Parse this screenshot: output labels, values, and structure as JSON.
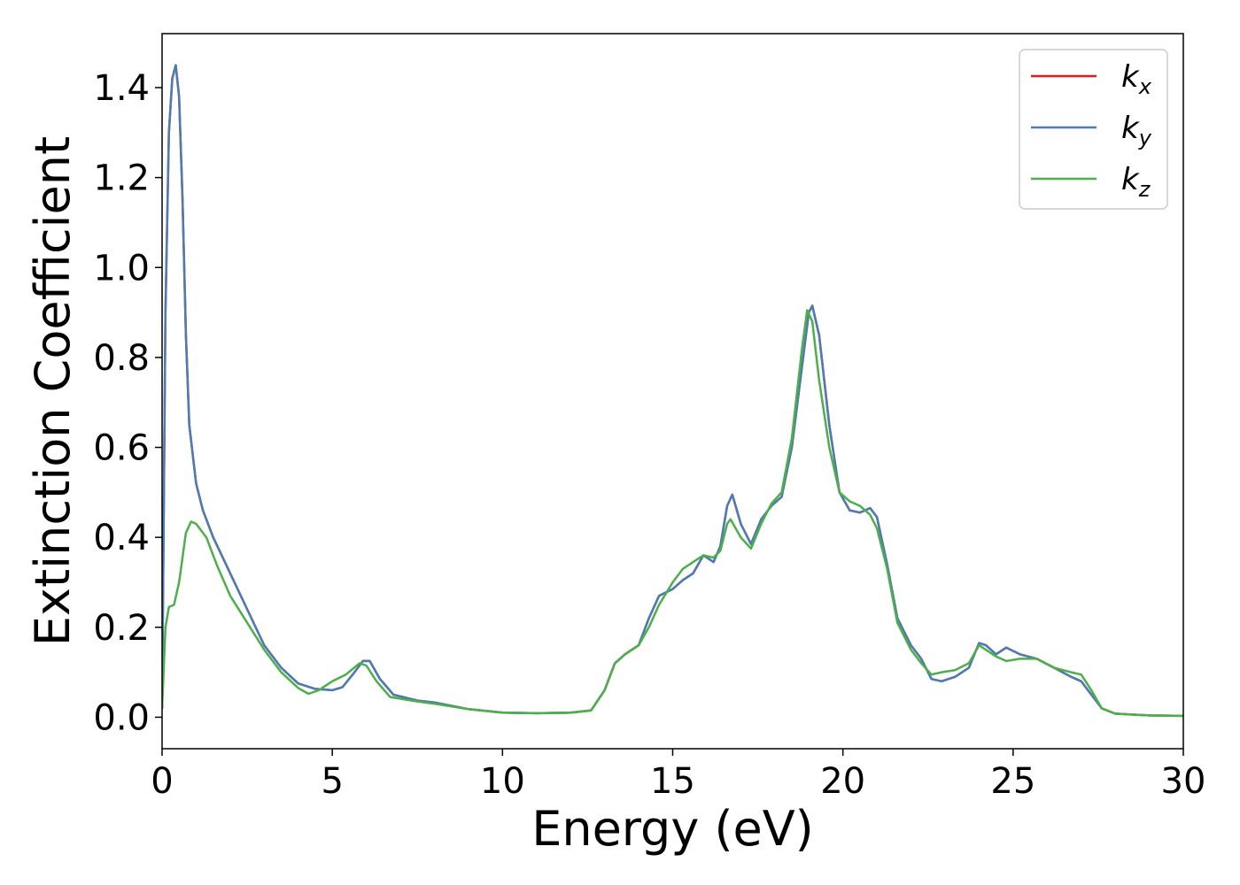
{
  "chart_data": {
    "type": "line",
    "xlabel": "Energy (eV)",
    "ylabel": "Extinction Coefficient",
    "xlim": [
      0,
      30
    ],
    "ylim": [
      -0.07,
      1.52
    ],
    "xticks": [
      0,
      5,
      10,
      15,
      20,
      25,
      30
    ],
    "xtick_labels": [
      "0",
      "5",
      "10",
      "15",
      "20",
      "25",
      "30"
    ],
    "yticks": [
      0.0,
      0.2,
      0.4,
      0.6,
      0.8,
      1.0,
      1.2,
      1.4
    ],
    "ytick_labels": [
      "0.0",
      "0.2",
      "0.4",
      "0.6",
      "0.8",
      "1.0",
      "1.2",
      "1.4"
    ],
    "grid": false,
    "legend_position": "top-right",
    "series": [
      {
        "name": "k_x",
        "label_base": "k",
        "label_sub": "x",
        "color": "#e41a1c",
        "points": [
          [
            0,
            0.02
          ],
          [
            0.1,
            0.9
          ],
          [
            0.2,
            1.3
          ],
          [
            0.3,
            1.42
          ],
          [
            0.4,
            1.45
          ],
          [
            0.5,
            1.38
          ],
          [
            0.6,
            1.15
          ],
          [
            0.7,
            0.85
          ],
          [
            0.8,
            0.65
          ],
          [
            1.0,
            0.52
          ],
          [
            1.2,
            0.46
          ],
          [
            1.5,
            0.4
          ],
          [
            2.0,
            0.32
          ],
          [
            2.5,
            0.24
          ],
          [
            3.0,
            0.16
          ],
          [
            3.5,
            0.11
          ],
          [
            4.0,
            0.075
          ],
          [
            4.5,
            0.063
          ],
          [
            5.0,
            0.06
          ],
          [
            5.3,
            0.067
          ],
          [
            5.6,
            0.095
          ],
          [
            5.9,
            0.125
          ],
          [
            6.1,
            0.125
          ],
          [
            6.4,
            0.085
          ],
          [
            6.8,
            0.05
          ],
          [
            7.5,
            0.037
          ],
          [
            8.0,
            0.033
          ],
          [
            9.0,
            0.018
          ],
          [
            10.0,
            0.01
          ],
          [
            11.0,
            0.009
          ],
          [
            12.0,
            0.01
          ],
          [
            12.6,
            0.015
          ],
          [
            13.0,
            0.06
          ],
          [
            13.3,
            0.12
          ],
          [
            13.6,
            0.14
          ],
          [
            14.0,
            0.16
          ],
          [
            14.3,
            0.22
          ],
          [
            14.6,
            0.27
          ],
          [
            15.0,
            0.285
          ],
          [
            15.3,
            0.305
          ],
          [
            15.6,
            0.32
          ],
          [
            15.9,
            0.36
          ],
          [
            16.2,
            0.345
          ],
          [
            16.4,
            0.38
          ],
          [
            16.6,
            0.47
          ],
          [
            16.75,
            0.495
          ],
          [
            17.0,
            0.43
          ],
          [
            17.3,
            0.385
          ],
          [
            17.6,
            0.44
          ],
          [
            17.9,
            0.47
          ],
          [
            18.2,
            0.49
          ],
          [
            18.5,
            0.6
          ],
          [
            18.8,
            0.78
          ],
          [
            19.0,
            0.9
          ],
          [
            19.1,
            0.915
          ],
          [
            19.3,
            0.85
          ],
          [
            19.6,
            0.65
          ],
          [
            19.9,
            0.5
          ],
          [
            20.2,
            0.46
          ],
          [
            20.5,
            0.455
          ],
          [
            20.8,
            0.465
          ],
          [
            21.0,
            0.445
          ],
          [
            21.3,
            0.34
          ],
          [
            21.6,
            0.22
          ],
          [
            22.0,
            0.16
          ],
          [
            22.3,
            0.13
          ],
          [
            22.6,
            0.085
          ],
          [
            22.9,
            0.08
          ],
          [
            23.3,
            0.09
          ],
          [
            23.7,
            0.11
          ],
          [
            24.0,
            0.165
          ],
          [
            24.2,
            0.16
          ],
          [
            24.5,
            0.14
          ],
          [
            24.8,
            0.155
          ],
          [
            25.2,
            0.14
          ],
          [
            25.7,
            0.13
          ],
          [
            26.2,
            0.11
          ],
          [
            26.7,
            0.09
          ],
          [
            27.0,
            0.08
          ],
          [
            27.3,
            0.05
          ],
          [
            27.6,
            0.02
          ],
          [
            28.0,
            0.008
          ],
          [
            29.0,
            0.004
          ],
          [
            30.0,
            0.003
          ]
        ]
      },
      {
        "name": "k_y",
        "label_base": "k",
        "label_sub": "y",
        "color": "#4a7db5",
        "points": [
          [
            0,
            0.02
          ],
          [
            0.1,
            0.9
          ],
          [
            0.2,
            1.3
          ],
          [
            0.3,
            1.42
          ],
          [
            0.4,
            1.45
          ],
          [
            0.5,
            1.38
          ],
          [
            0.6,
            1.15
          ],
          [
            0.7,
            0.85
          ],
          [
            0.8,
            0.65
          ],
          [
            1.0,
            0.52
          ],
          [
            1.2,
            0.46
          ],
          [
            1.5,
            0.4
          ],
          [
            2.0,
            0.32
          ],
          [
            2.5,
            0.24
          ],
          [
            3.0,
            0.16
          ],
          [
            3.5,
            0.11
          ],
          [
            4.0,
            0.075
          ],
          [
            4.5,
            0.063
          ],
          [
            5.0,
            0.06
          ],
          [
            5.3,
            0.067
          ],
          [
            5.6,
            0.095
          ],
          [
            5.9,
            0.125
          ],
          [
            6.1,
            0.125
          ],
          [
            6.4,
            0.085
          ],
          [
            6.8,
            0.05
          ],
          [
            7.5,
            0.037
          ],
          [
            8.0,
            0.033
          ],
          [
            9.0,
            0.018
          ],
          [
            10.0,
            0.01
          ],
          [
            11.0,
            0.009
          ],
          [
            12.0,
            0.01
          ],
          [
            12.6,
            0.015
          ],
          [
            13.0,
            0.06
          ],
          [
            13.3,
            0.12
          ],
          [
            13.6,
            0.14
          ],
          [
            14.0,
            0.16
          ],
          [
            14.3,
            0.22
          ],
          [
            14.6,
            0.27
          ],
          [
            15.0,
            0.285
          ],
          [
            15.3,
            0.305
          ],
          [
            15.6,
            0.32
          ],
          [
            15.9,
            0.36
          ],
          [
            16.2,
            0.345
          ],
          [
            16.4,
            0.38
          ],
          [
            16.6,
            0.47
          ],
          [
            16.75,
            0.495
          ],
          [
            17.0,
            0.43
          ],
          [
            17.3,
            0.385
          ],
          [
            17.6,
            0.44
          ],
          [
            17.9,
            0.47
          ],
          [
            18.2,
            0.49
          ],
          [
            18.5,
            0.6
          ],
          [
            18.8,
            0.78
          ],
          [
            19.0,
            0.9
          ],
          [
            19.1,
            0.915
          ],
          [
            19.3,
            0.85
          ],
          [
            19.6,
            0.65
          ],
          [
            19.9,
            0.5
          ],
          [
            20.2,
            0.46
          ],
          [
            20.5,
            0.455
          ],
          [
            20.8,
            0.465
          ],
          [
            21.0,
            0.445
          ],
          [
            21.3,
            0.34
          ],
          [
            21.6,
            0.22
          ],
          [
            22.0,
            0.16
          ],
          [
            22.3,
            0.13
          ],
          [
            22.6,
            0.085
          ],
          [
            22.9,
            0.08
          ],
          [
            23.3,
            0.09
          ],
          [
            23.7,
            0.11
          ],
          [
            24.0,
            0.165
          ],
          [
            24.2,
            0.16
          ],
          [
            24.5,
            0.14
          ],
          [
            24.8,
            0.155
          ],
          [
            25.2,
            0.14
          ],
          [
            25.7,
            0.13
          ],
          [
            26.2,
            0.11
          ],
          [
            26.7,
            0.09
          ],
          [
            27.0,
            0.08
          ],
          [
            27.3,
            0.05
          ],
          [
            27.6,
            0.02
          ],
          [
            28.0,
            0.008
          ],
          [
            29.0,
            0.004
          ],
          [
            30.0,
            0.003
          ]
        ]
      },
      {
        "name": "k_z",
        "label_base": "k",
        "label_sub": "z",
        "color": "#4daf4a",
        "points": [
          [
            0,
            0.02
          ],
          [
            0.1,
            0.2
          ],
          [
            0.2,
            0.245
          ],
          [
            0.35,
            0.25
          ],
          [
            0.5,
            0.3
          ],
          [
            0.7,
            0.41
          ],
          [
            0.85,
            0.435
          ],
          [
            1.0,
            0.43
          ],
          [
            1.3,
            0.4
          ],
          [
            1.6,
            0.34
          ],
          [
            2.0,
            0.27
          ],
          [
            2.5,
            0.21
          ],
          [
            3.0,
            0.15
          ],
          [
            3.5,
            0.1
          ],
          [
            4.0,
            0.065
          ],
          [
            4.3,
            0.052
          ],
          [
            4.6,
            0.06
          ],
          [
            5.0,
            0.08
          ],
          [
            5.4,
            0.095
          ],
          [
            5.8,
            0.12
          ],
          [
            6.0,
            0.115
          ],
          [
            6.3,
            0.08
          ],
          [
            6.7,
            0.045
          ],
          [
            7.5,
            0.035
          ],
          [
            8.0,
            0.03
          ],
          [
            9.0,
            0.018
          ],
          [
            10.0,
            0.01
          ],
          [
            11.0,
            0.009
          ],
          [
            12.0,
            0.01
          ],
          [
            12.6,
            0.015
          ],
          [
            13.0,
            0.06
          ],
          [
            13.3,
            0.12
          ],
          [
            13.6,
            0.14
          ],
          [
            14.0,
            0.16
          ],
          [
            14.3,
            0.2
          ],
          [
            14.6,
            0.25
          ],
          [
            15.0,
            0.3
          ],
          [
            15.3,
            0.33
          ],
          [
            15.6,
            0.345
          ],
          [
            15.9,
            0.36
          ],
          [
            16.2,
            0.355
          ],
          [
            16.4,
            0.37
          ],
          [
            16.6,
            0.43
          ],
          [
            16.7,
            0.44
          ],
          [
            17.0,
            0.4
          ],
          [
            17.3,
            0.375
          ],
          [
            17.6,
            0.43
          ],
          [
            17.9,
            0.475
          ],
          [
            18.2,
            0.5
          ],
          [
            18.5,
            0.62
          ],
          [
            18.8,
            0.82
          ],
          [
            18.95,
            0.905
          ],
          [
            19.1,
            0.88
          ],
          [
            19.3,
            0.75
          ],
          [
            19.6,
            0.6
          ],
          [
            19.9,
            0.5
          ],
          [
            20.2,
            0.48
          ],
          [
            20.5,
            0.47
          ],
          [
            20.8,
            0.45
          ],
          [
            21.0,
            0.42
          ],
          [
            21.3,
            0.33
          ],
          [
            21.6,
            0.21
          ],
          [
            22.0,
            0.15
          ],
          [
            22.3,
            0.12
          ],
          [
            22.6,
            0.095
          ],
          [
            22.9,
            0.1
          ],
          [
            23.3,
            0.105
          ],
          [
            23.7,
            0.12
          ],
          [
            24.0,
            0.16
          ],
          [
            24.2,
            0.15
          ],
          [
            24.5,
            0.135
          ],
          [
            24.8,
            0.125
          ],
          [
            25.2,
            0.13
          ],
          [
            25.7,
            0.13
          ],
          [
            26.2,
            0.11
          ],
          [
            26.7,
            0.1
          ],
          [
            27.0,
            0.095
          ],
          [
            27.3,
            0.06
          ],
          [
            27.6,
            0.02
          ],
          [
            28.0,
            0.008
          ],
          [
            29.0,
            0.004
          ],
          [
            30.0,
            0.003
          ]
        ]
      }
    ]
  }
}
